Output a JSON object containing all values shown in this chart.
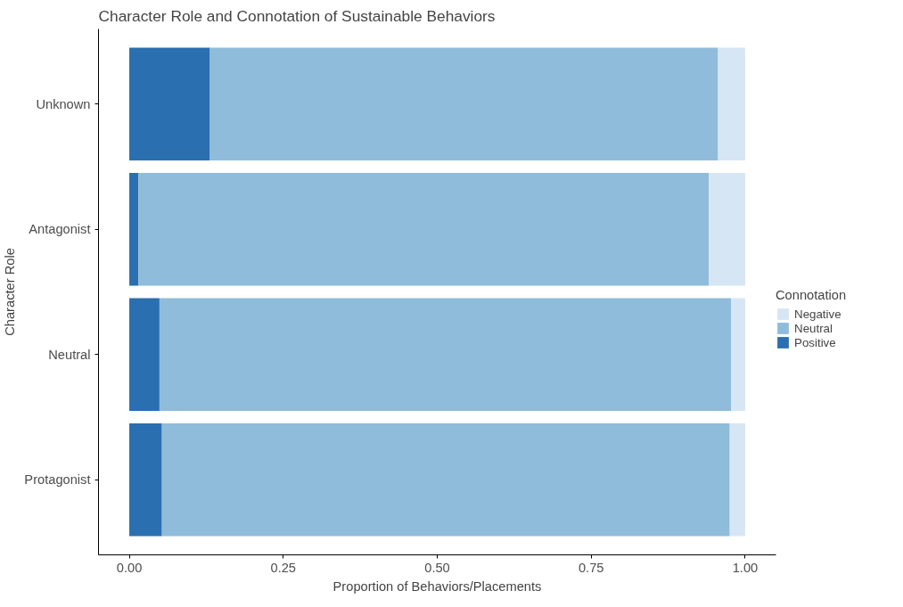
{
  "chart_data": {
    "type": "bar",
    "orientation": "horizontal",
    "stacked": true,
    "title": "Character Role and Connotation of Sustainable Behaviors",
    "xlabel": "Proportion of Behaviors/Placements",
    "ylabel": "Character Role",
    "legend_title": "Connotation",
    "legend": "right",
    "grid": false,
    "categories": [
      "Unknown",
      "Antagonist",
      "Neutral",
      "Protagonist"
    ],
    "series": [
      {
        "name": "Positive",
        "color": "#2a6fb0",
        "values": [
          0.131,
          0.015,
          0.049,
          0.053
        ]
      },
      {
        "name": "Neutral",
        "color": "#8fbcdb",
        "values": [
          0.825,
          0.926,
          0.928,
          0.922
        ]
      },
      {
        "name": "Negative",
        "color": "#d6e6f4",
        "values": [
          0.044,
          0.059,
          0.023,
          0.025
        ]
      }
    ],
    "xlim": [
      -0.05,
      1.05
    ],
    "xticks": [
      {
        "value": 0,
        "label": "0.00"
      },
      {
        "value": 0.25,
        "label": "0.25"
      },
      {
        "value": 0.5,
        "label": "0.50"
      },
      {
        "value": 0.75,
        "label": "0.75"
      },
      {
        "value": 1,
        "label": "1.00"
      }
    ]
  }
}
